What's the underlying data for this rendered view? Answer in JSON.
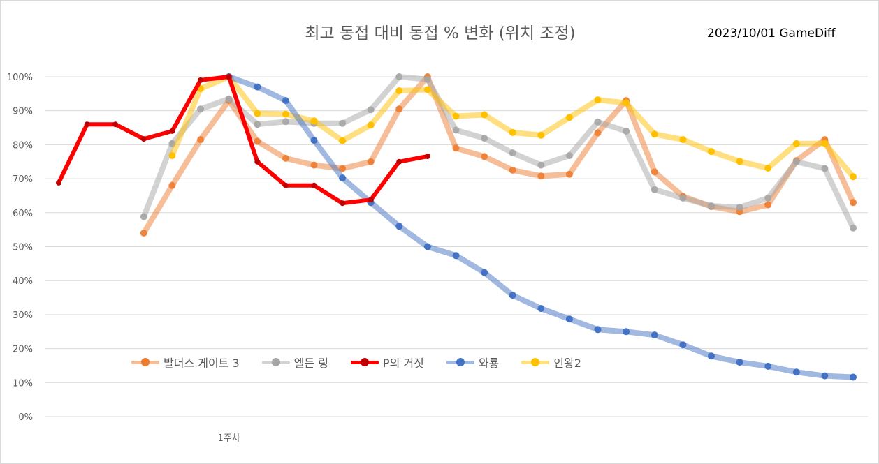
{
  "chart_data": {
    "type": "line",
    "title": "최고 동접 대비 동접 % 변화 (위치 조정)",
    "stamp": "2023/10/01 GameDiff",
    "xlabel": "",
    "ylabel": "",
    "ylim": [
      0,
      100
    ],
    "yticks": [
      "0%",
      "10%",
      "20%",
      "30%",
      "40%",
      "50%",
      "60%",
      "70%",
      "80%",
      "90%",
      "100%"
    ],
    "x_tick_label": "1주차",
    "x_tick_index": 6,
    "n_points": 29,
    "grid": true,
    "legend_position": "bottom-left (inside plot)",
    "series": [
      {
        "name": "발더스 게이트 3",
        "color": "#ED7D31",
        "values": [
          null,
          null,
          null,
          54,
          68,
          81.5,
          93,
          81,
          76,
          74,
          73,
          75,
          90.5,
          100,
          79,
          76.5,
          72.5,
          70.8,
          71.3,
          83.5,
          93,
          72,
          64.8,
          61.8,
          60.3,
          62.3,
          75.3,
          81.5,
          63
        ]
      },
      {
        "name": "엘든 링",
        "color": "#A5A5A5",
        "values": [
          null,
          null,
          null,
          58.8,
          80.3,
          90.5,
          93.5,
          86,
          86.8,
          86.3,
          86.3,
          90.3,
          100,
          99.2,
          84.3,
          81.9,
          77.6,
          74,
          76.8,
          86.7,
          84.0,
          66.8,
          64.3,
          62,
          61.6,
          64.3,
          75,
          73,
          55.5
        ]
      },
      {
        "name": "P의 거짓",
        "color": "#FF0000",
        "values": [
          68.8,
          86,
          86,
          81.7,
          84,
          99,
          100,
          75,
          68,
          68,
          62.8,
          63.8,
          75,
          76.6,
          null,
          null,
          null,
          null,
          null,
          null,
          null,
          null,
          null,
          null,
          null,
          null,
          null,
          null,
          null
        ]
      },
      {
        "name": "와룡",
        "color": "#4472C4",
        "values": [
          null,
          null,
          null,
          null,
          null,
          null,
          100,
          97,
          93,
          81.3,
          70.2,
          63,
          56,
          50,
          47.4,
          42.4,
          35.7,
          31.8,
          28.7,
          25.6,
          25,
          24,
          21.1,
          17.8,
          16,
          14.8,
          13.1,
          12,
          11.6
        ]
      },
      {
        "name": "인왕2",
        "color": "#FFC000",
        "values": [
          null,
          null,
          null,
          null,
          76.8,
          96.5,
          100,
          89.2,
          89,
          87,
          81.2,
          85.8,
          95.9,
          96.2,
          88.4,
          88.8,
          83.6,
          82.8,
          88,
          93.2,
          92.3,
          83.1,
          81.5,
          78,
          75.1,
          73.1,
          80.3,
          80.4,
          70.6
        ]
      }
    ]
  }
}
